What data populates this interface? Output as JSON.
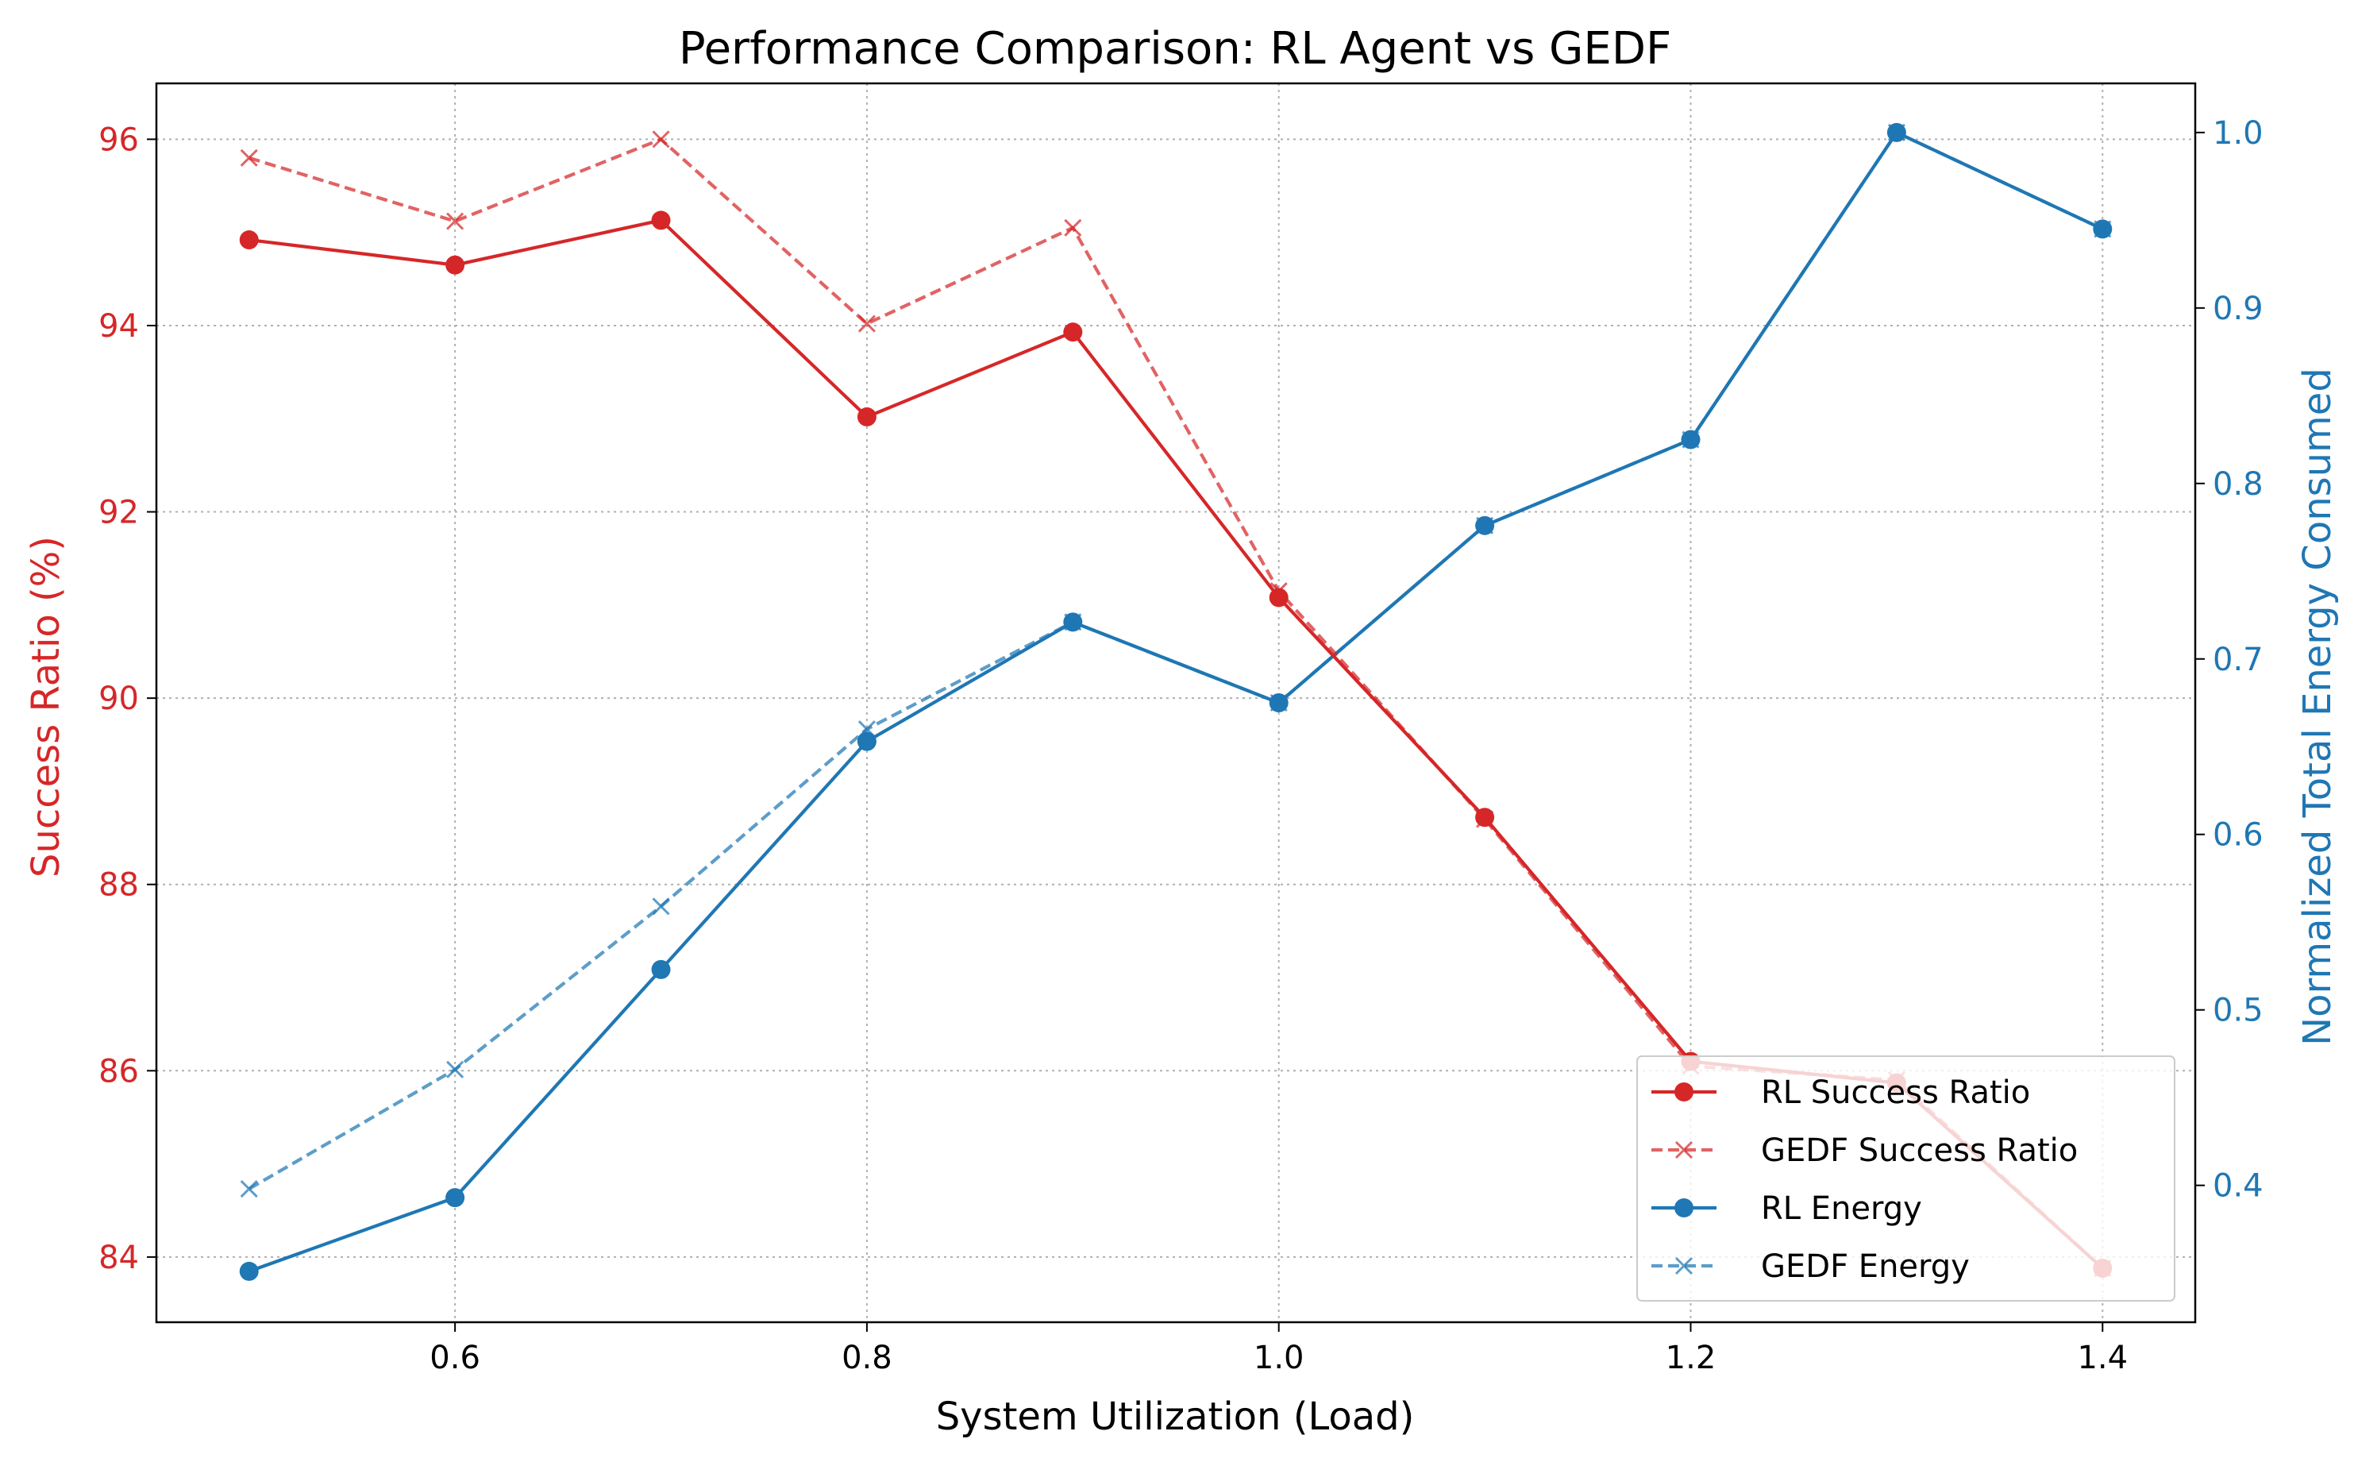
{
  "chart_data": {
    "type": "line",
    "title": "Performance Comparison: RL Agent vs GEDF",
    "xlabel": "System Utilization (Load)",
    "ylabel_left": "Success Ratio (%)",
    "ylabel_right": "Normalized Total Energy Consumed",
    "x": [
      0.5,
      0.6,
      0.7,
      0.8,
      0.9,
      1.0,
      1.1,
      1.2,
      1.3,
      1.4
    ],
    "xlim": [
      0.455,
      1.445
    ],
    "ylim_left": [
      83.3,
      96.6
    ],
    "ylim_right": [
      0.322,
      1.028
    ],
    "x_ticks": [
      "0.6",
      "0.8",
      "1.0",
      "1.2",
      "1.4"
    ],
    "left_ticks": [
      "84",
      "86",
      "88",
      "90",
      "92",
      "94",
      "96"
    ],
    "right_ticks": [
      "0.4",
      "0.5",
      "0.6",
      "0.7",
      "0.8",
      "0.9",
      "1.0"
    ],
    "grid": true,
    "legend_position": "lower-right",
    "colors": {
      "red": "#d62728",
      "blue": "#1f77b4"
    },
    "series": [
      {
        "name": "RL Success Ratio",
        "axis": "left",
        "style": "solid",
        "marker": "circle",
        "color": "#d62728",
        "values": [
          94.92,
          94.65,
          95.13,
          93.02,
          93.93,
          91.08,
          88.72,
          86.1,
          85.87,
          83.88
        ]
      },
      {
        "name": "GEDF Success Ratio",
        "axis": "left",
        "style": "dashed",
        "marker": "x",
        "color": "#d62728",
        "values": [
          95.8,
          95.12,
          96.0,
          94.02,
          95.05,
          91.15,
          88.7,
          86.05,
          85.9,
          83.88
        ]
      },
      {
        "name": "RL Energy",
        "axis": "right",
        "style": "solid",
        "marker": "circle",
        "color": "#1f77b4",
        "values": [
          0.351,
          0.393,
          0.523,
          0.653,
          0.721,
          0.675,
          0.776,
          0.825,
          1.0,
          0.945
        ]
      },
      {
        "name": "GEDF Energy",
        "axis": "right",
        "style": "dashed",
        "marker": "x",
        "color": "#1f77b4",
        "values": [
          0.398,
          0.466,
          0.559,
          0.66,
          0.721,
          0.675,
          0.776,
          0.825,
          1.0,
          0.945
        ]
      }
    ]
  }
}
